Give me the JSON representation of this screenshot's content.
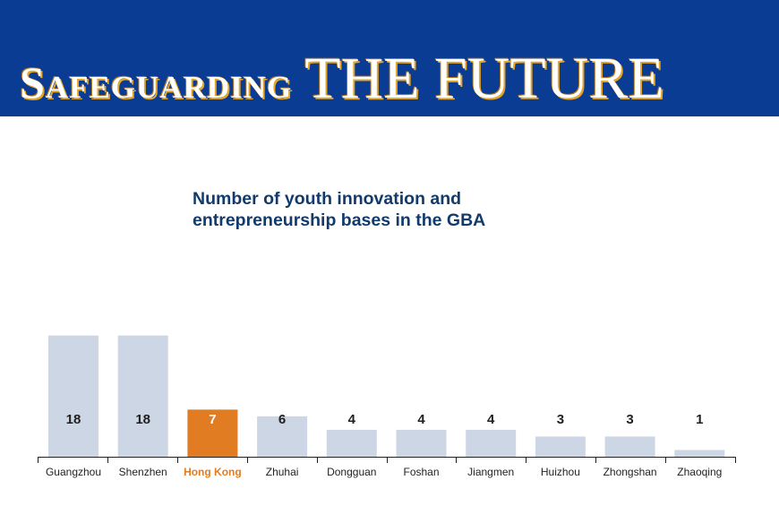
{
  "header": {
    "title_part1": "Safeguarding",
    "title_part2": "THE FUTURE"
  },
  "chart_data": {
    "type": "bar",
    "title": "Number of youth innovation and entrepreneurship bases in the GBA",
    "categories": [
      "Guangzhou",
      "Shenzhen",
      "Hong Kong",
      "Zhuhai",
      "Dongguan",
      "Foshan",
      "Jiangmen",
      "Huizhou",
      "Zhongshan",
      "Zhaoqing"
    ],
    "values": [
      18,
      18,
      7,
      6,
      4,
      4,
      4,
      3,
      3,
      1
    ],
    "highlight": "Hong Kong",
    "colors": {
      "bar": "#cdd6e4",
      "highlight": "#e27c22",
      "highlight_label": "#e27c22",
      "value_text": "#1f1f1f",
      "value_text_highlight": "#ffffff",
      "banner": "#0a3c94",
      "title": "#123b6b"
    },
    "grid": false,
    "legend": "none"
  }
}
